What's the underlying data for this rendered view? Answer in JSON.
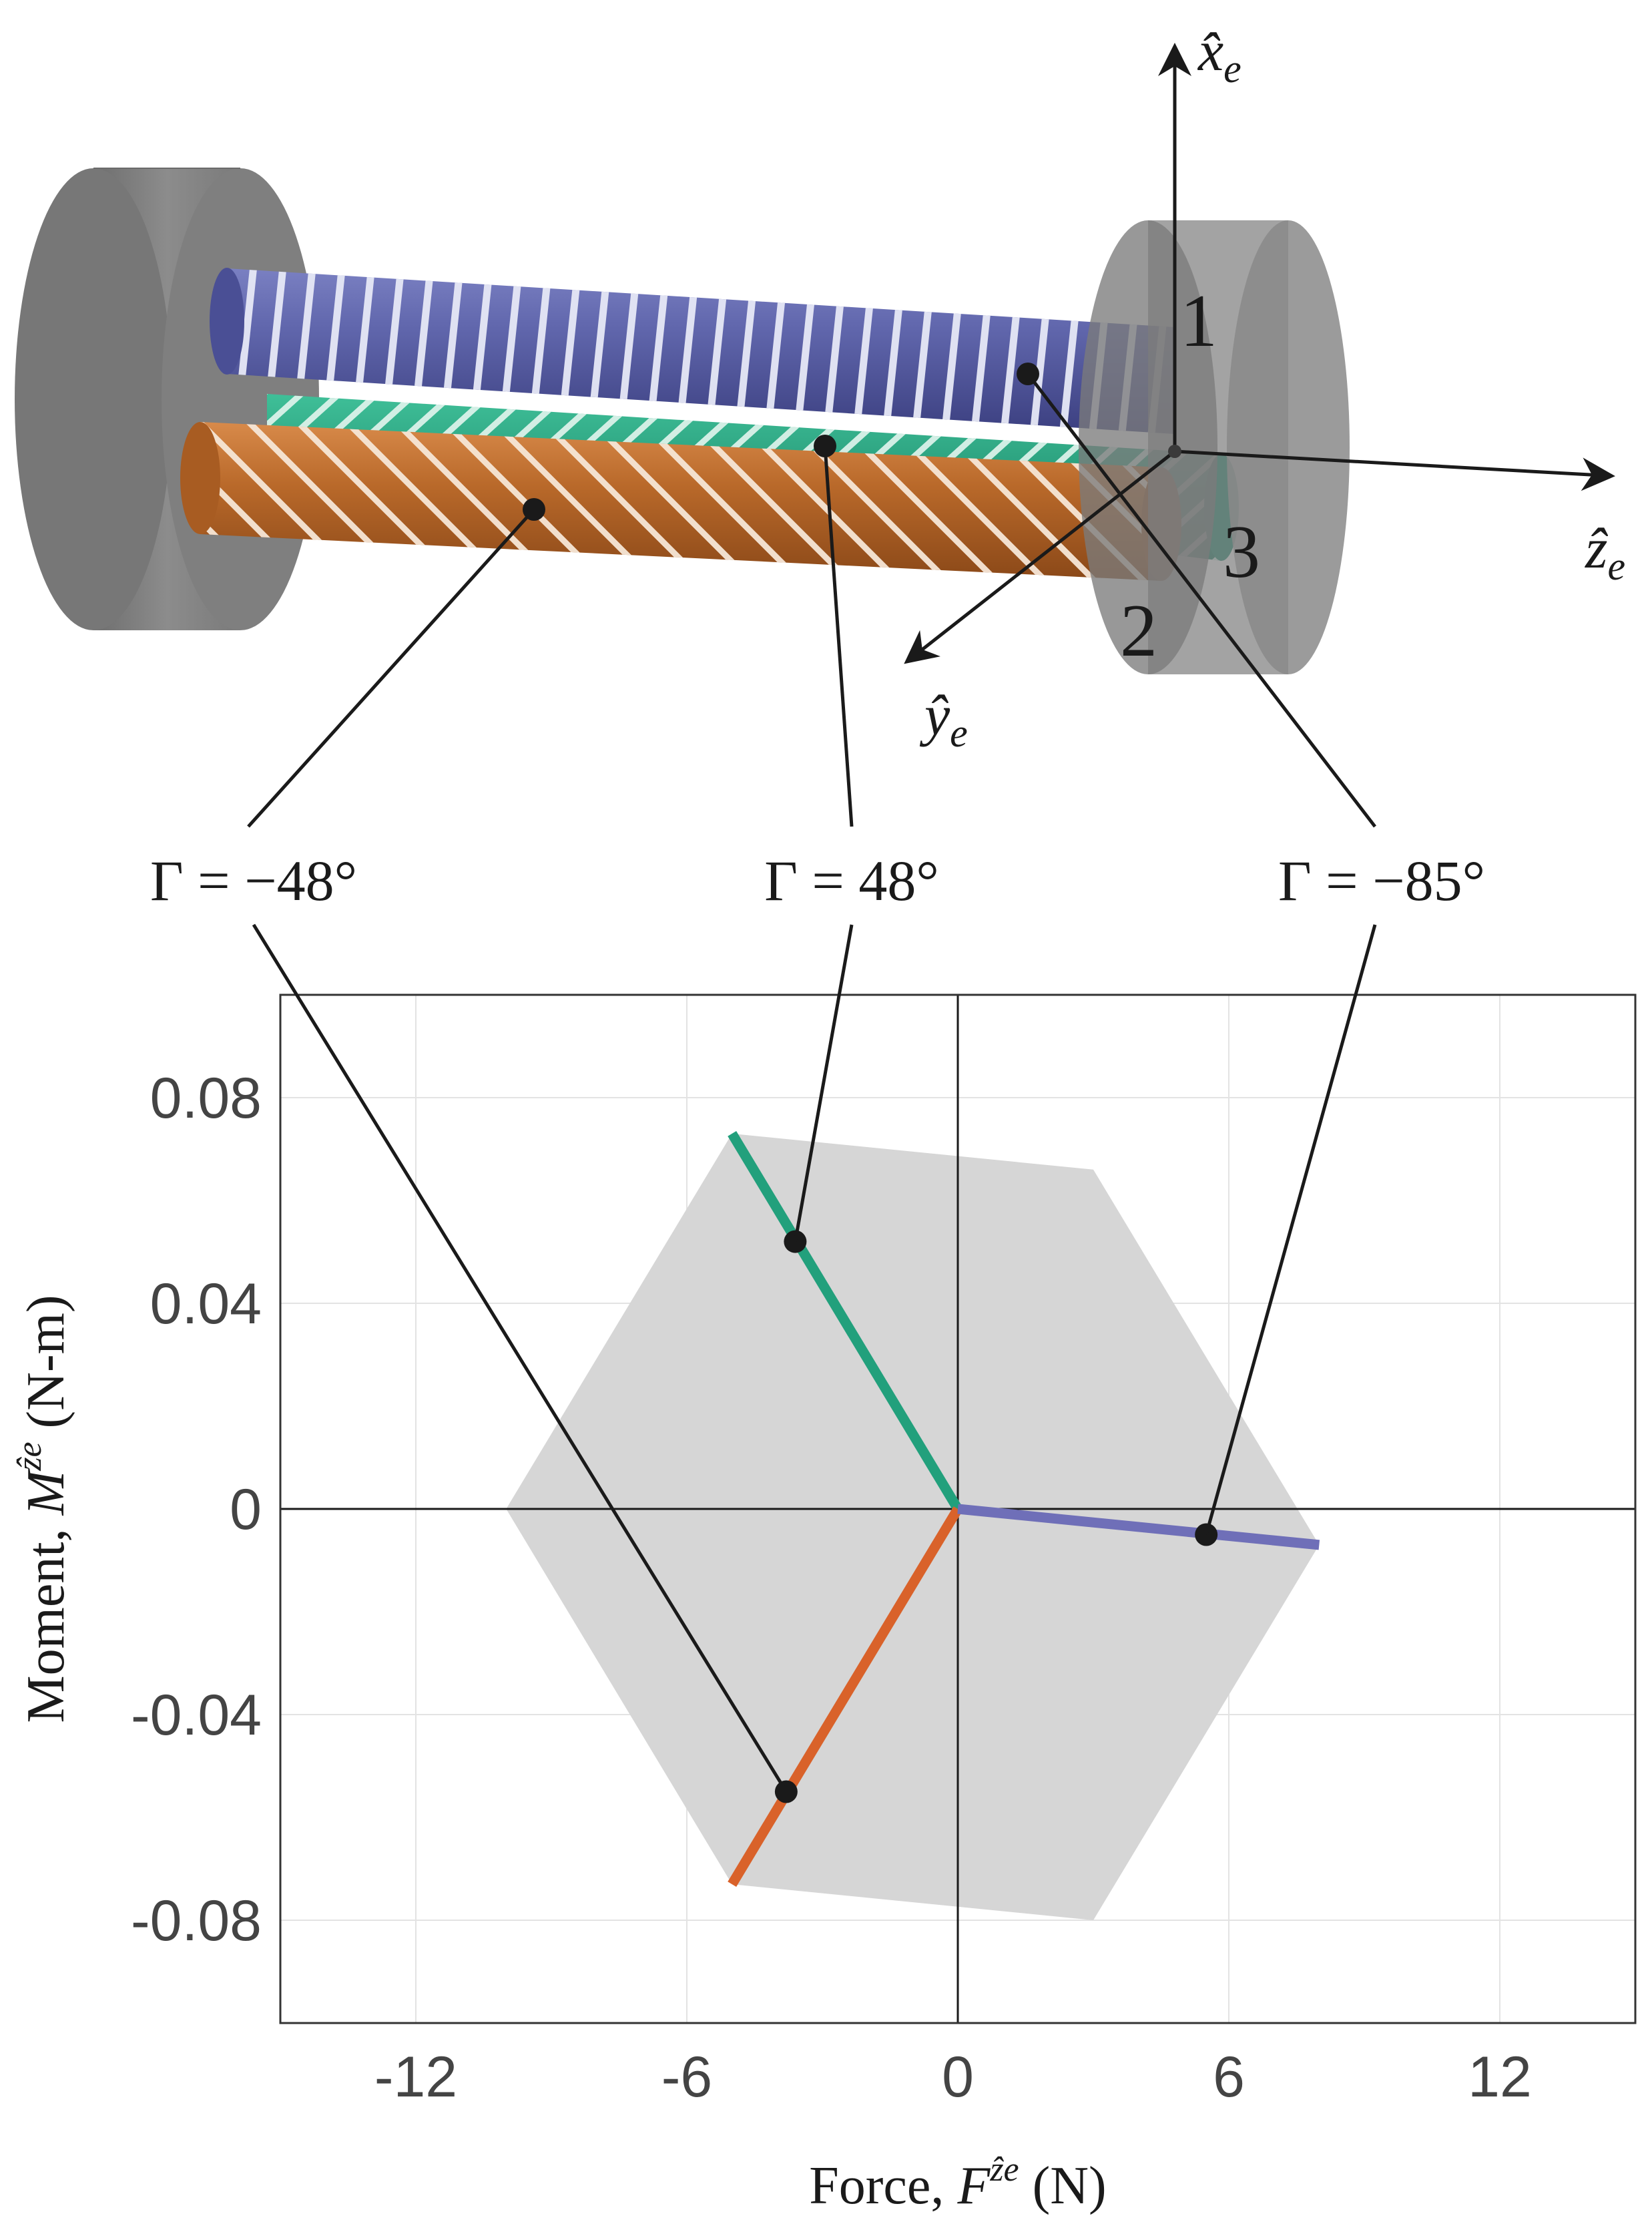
{
  "diagram": {
    "actuator_labels": [
      "1",
      "2",
      "3"
    ],
    "frame_axes": {
      "x": {
        "symbol": "x̂",
        "subscript": "e"
      },
      "y": {
        "symbol": "ŷ",
        "subscript": "e"
      },
      "z": {
        "symbol": "ẑ",
        "subscript": "e"
      }
    },
    "callouts": [
      {
        "text": "Γ = −48°",
        "color": "#d9622a"
      },
      {
        "text": "Γ = 48°",
        "color": "#22a07c"
      },
      {
        "text": "Γ = −85°",
        "color": "#6f6fb8"
      }
    ],
    "colors": {
      "blue_cylinder": "#5b62a8",
      "green_cylinder": "#1f9e7e",
      "orange_cylinder": "#b9692a",
      "end_cap": "#808080",
      "feasible_region": "#d6d6d6"
    }
  },
  "chart_data": {
    "type": "line",
    "xlabel_prefix": "Force, ",
    "xlabel_symbol": "F",
    "xlabel_sup": "ẑe",
    "xlabel_unit": " (N)",
    "ylabel_prefix": "Moment, ",
    "ylabel_symbol": "M",
    "ylabel_sup": "ẑe",
    "ylabel_unit": " (N-m)",
    "xlim": [
      -15,
      15
    ],
    "ylim": [
      -0.1,
      0.1
    ],
    "xticks": [
      -12,
      -6,
      0,
      6,
      12
    ],
    "xtick_labels": [
      "-12",
      "-6",
      "0",
      "6",
      "12"
    ],
    "yticks": [
      0.08,
      0.04,
      0,
      -0.04,
      -0.08
    ],
    "ytick_labels": [
      "0.08",
      "0.04",
      "0",
      "-0.04",
      "-0.08"
    ],
    "grid": true,
    "feasible_region": [
      {
        "x": -5.0,
        "y": 0.073
      },
      {
        "x": 3.0,
        "y": 0.066
      },
      {
        "x": 8.0,
        "y": -0.007
      },
      {
        "x": 3.0,
        "y": -0.08
      },
      {
        "x": -5.0,
        "y": -0.073
      },
      {
        "x": -10.0,
        "y": 0.0
      }
    ],
    "series": [
      {
        "color": "#22a07c",
        "x": [
          0,
          -5.0
        ],
        "y": [
          0,
          0.073
        ],
        "marker": {
          "x": -3.6,
          "y": 0.052
        }
      },
      {
        "color": "#d9622a",
        "x": [
          0,
          -5.0
        ],
        "y": [
          0,
          -0.073
        ],
        "marker": {
          "x": -3.8,
          "y": -0.055
        }
      },
      {
        "color": "#6f6fb8",
        "x": [
          0,
          8.0
        ],
        "y": [
          0,
          -0.007
        ],
        "marker": {
          "x": 5.5,
          "y": -0.005
        }
      }
    ]
  }
}
